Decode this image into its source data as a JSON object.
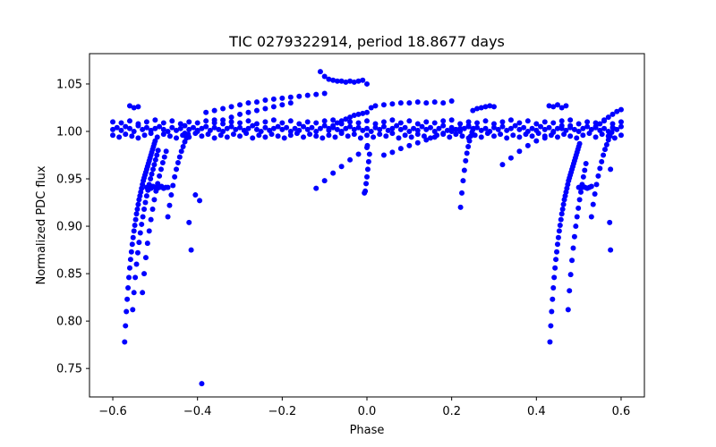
{
  "chart_data": {
    "type": "scatter",
    "title": "TIC 0279322914, period 18.8677 days",
    "xlabel": "Phase",
    "ylabel": "Normalized PDC flux",
    "xlim": [
      -0.655,
      0.655
    ],
    "ylim": [
      0.72,
      1.082
    ],
    "xticks": [
      -0.6,
      -0.4,
      -0.2,
      0.0,
      0.2,
      0.4,
      0.6
    ],
    "xtick_labels": [
      "−0.6",
      "−0.4",
      "−0.2",
      "0.0",
      "0.2",
      "0.4",
      "0.6"
    ],
    "yticks": [
      0.75,
      0.8,
      0.85,
      0.9,
      0.95,
      1.0,
      1.05
    ],
    "ytick_labels": [
      "0.75",
      "0.80",
      "0.85",
      "0.90",
      "0.95",
      "1.00",
      "1.05"
    ],
    "grid": false,
    "marker_color": "#0000ff",
    "series": [
      {
        "name": "flux",
        "x": [
          -0.6,
          -0.59,
          -0.58,
          -0.57,
          -0.56,
          -0.55,
          -0.54,
          -0.53,
          -0.52,
          -0.51,
          -0.5,
          -0.49,
          -0.48,
          -0.47,
          -0.46,
          -0.45,
          -0.44,
          -0.43,
          -0.42,
          -0.41,
          -0.4,
          -0.39,
          -0.38,
          -0.37,
          -0.36,
          -0.35,
          -0.34,
          -0.33,
          -0.32,
          -0.31,
          -0.3,
          -0.29,
          -0.28,
          -0.27,
          -0.26,
          -0.25,
          -0.24,
          -0.23,
          -0.22,
          -0.21,
          -0.2,
          -0.19,
          -0.18,
          -0.17,
          -0.16,
          -0.15,
          -0.14,
          -0.13,
          -0.12,
          -0.11,
          -0.1,
          -0.09,
          -0.08,
          -0.07,
          -0.06,
          -0.05,
          -0.04,
          -0.03,
          -0.02,
          -0.01,
          0.0,
          0.01,
          0.02,
          0.03,
          0.04,
          0.05,
          0.06,
          0.07,
          0.08,
          0.09,
          0.1,
          0.11,
          0.12,
          0.13,
          0.14,
          0.15,
          0.16,
          0.17,
          0.18,
          0.19,
          0.2,
          0.21,
          0.22,
          0.23,
          0.24,
          0.25,
          0.26,
          0.27,
          0.28,
          0.29,
          0.3,
          0.31,
          0.32,
          0.33,
          0.34,
          0.35,
          0.36,
          0.37,
          0.38,
          0.39,
          0.4,
          0.41,
          0.42,
          0.43,
          0.44,
          0.45,
          0.46,
          0.47,
          0.48,
          0.49,
          0.5,
          0.51,
          0.52,
          0.53,
          0.54,
          0.55,
          0.56,
          0.57,
          0.58,
          0.59,
          0.6,
          -0.6,
          -0.585,
          -0.57,
          -0.555,
          -0.54,
          -0.525,
          -0.51,
          -0.495,
          -0.48,
          -0.465,
          -0.45,
          -0.435,
          -0.42,
          -0.405,
          -0.39,
          -0.375,
          -0.36,
          -0.345,
          -0.33,
          -0.315,
          -0.3,
          -0.285,
          -0.27,
          -0.255,
          -0.24,
          -0.225,
          -0.21,
          -0.195,
          -0.18,
          -0.165,
          -0.15,
          -0.135,
          -0.12,
          -0.105,
          -0.09,
          -0.075,
          -0.06,
          -0.045,
          -0.03,
          -0.015,
          0.0,
          0.015,
          0.03,
          0.045,
          0.06,
          0.075,
          0.09,
          0.105,
          0.12,
          0.135,
          0.15,
          0.165,
          0.18,
          0.195,
          0.21,
          0.225,
          0.24,
          0.255,
          0.27,
          0.285,
          0.3,
          0.315,
          0.33,
          0.345,
          0.36,
          0.375,
          0.39,
          0.405,
          0.42,
          0.435,
          0.45,
          0.465,
          0.48,
          0.495,
          0.51,
          0.525,
          0.54,
          0.555,
          0.57,
          0.585,
          0.6,
          -0.6,
          -0.58,
          -0.56,
          -0.54,
          -0.52,
          -0.5,
          -0.48,
          -0.46,
          -0.44,
          -0.42,
          -0.4,
          -0.38,
          -0.36,
          -0.34,
          -0.32,
          -0.3,
          -0.28,
          -0.26,
          -0.24,
          -0.22,
          -0.2,
          -0.18,
          -0.16,
          -0.14,
          -0.12,
          -0.1,
          -0.08,
          -0.06,
          -0.04,
          -0.02,
          0.0,
          0.02,
          0.04,
          0.06,
          0.08,
          0.1,
          0.12,
          0.14,
          0.16,
          0.18,
          0.2,
          0.22,
          0.24,
          0.26,
          0.28,
          0.3,
          0.32,
          0.34,
          0.36,
          0.38,
          0.4,
          0.42,
          0.44,
          0.46,
          0.48,
          0.5,
          0.52,
          0.54,
          0.56,
          0.58,
          0.6,
          -0.572,
          -0.57,
          -0.568,
          -0.566,
          -0.564,
          -0.562,
          -0.56,
          -0.558,
          -0.556,
          -0.554,
          -0.552,
          -0.55,
          -0.548,
          -0.546,
          -0.544,
          -0.542,
          -0.54,
          -0.538,
          -0.536,
          -0.534,
          -0.532,
          -0.53,
          -0.528,
          -0.526,
          -0.524,
          -0.522,
          -0.52,
          -0.518,
          -0.516,
          -0.514,
          -0.512,
          -0.51,
          -0.508,
          -0.506,
          -0.504,
          -0.502,
          -0.5,
          -0.553,
          -0.55,
          -0.547,
          -0.544,
          -0.541,
          -0.538,
          -0.535,
          -0.532,
          -0.529,
          -0.526,
          -0.523,
          -0.52,
          -0.517,
          -0.514,
          -0.511,
          -0.508,
          -0.505,
          -0.502,
          -0.499,
          -0.496,
          -0.493,
          -0.53,
          -0.526,
          -0.522,
          -0.518,
          -0.514,
          -0.51,
          -0.506,
          -0.502,
          -0.498,
          -0.494,
          -0.49,
          -0.486,
          -0.482,
          -0.478,
          -0.474,
          -0.47,
          -0.466,
          -0.462,
          -0.458,
          -0.454,
          -0.45,
          -0.446,
          -0.442,
          -0.438,
          -0.434,
          -0.43,
          -0.426,
          -0.422,
          -0.52,
          -0.515,
          -0.51,
          -0.505,
          -0.5,
          -0.495,
          -0.49,
          -0.485,
          -0.48,
          -0.475,
          -0.47,
          -0.43,
          -0.4,
          -0.38,
          -0.36,
          -0.34,
          -0.32,
          -0.3,
          -0.28,
          -0.26,
          -0.24,
          -0.22,
          -0.2,
          -0.18,
          -0.38,
          -0.36,
          -0.34,
          -0.32,
          -0.3,
          -0.28,
          -0.26,
          -0.24,
          -0.22,
          -0.2,
          -0.18,
          -0.16,
          -0.14,
          -0.12,
          -0.1,
          -0.11,
          -0.1,
          -0.09,
          -0.08,
          -0.07,
          -0.06,
          -0.05,
          -0.04,
          -0.03,
          -0.02,
          -0.01,
          0.0,
          -0.12,
          -0.1,
          -0.08,
          -0.06,
          -0.04,
          -0.02,
          0.0,
          -0.09,
          -0.08,
          -0.07,
          -0.06,
          -0.05,
          -0.04,
          -0.03,
          -0.02,
          -0.01,
          0.0,
          -0.004,
          -0.002,
          0.0,
          0.002,
          0.004,
          0.006,
          -0.006,
          0.001,
          0.01,
          0.02,
          0.04,
          0.06,
          0.08,
          0.1,
          0.12,
          0.14,
          0.16,
          0.18,
          0.2,
          0.04,
          0.06,
          0.08,
          0.1,
          0.12,
          0.14,
          0.16,
          0.18,
          0.2,
          0.22,
          0.24,
          0.221,
          0.224,
          0.227,
          0.23,
          0.233,
          0.236,
          0.239,
          0.242,
          0.245,
          0.248,
          0.251,
          0.25,
          0.26,
          0.27,
          0.28,
          0.29,
          0.3,
          0.32,
          0.34,
          0.36,
          0.38,
          0.4,
          0.42,
          0.44,
          0.46,
          0.48,
          0.432,
          0.434,
          0.436,
          0.438,
          0.44,
          0.442,
          0.444,
          0.446,
          0.448,
          0.45,
          0.452,
          0.454,
          0.456,
          0.458,
          0.46,
          0.462,
          0.464,
          0.466,
          0.468,
          0.47,
          0.472,
          0.474,
          0.476,
          0.478,
          0.48,
          0.482,
          0.484,
          0.486,
          0.488,
          0.49,
          0.492,
          0.494,
          0.496,
          0.498,
          0.5,
          0.502,
          0.475,
          0.478,
          0.481,
          0.484,
          0.487,
          0.49,
          0.493,
          0.496,
          0.499,
          0.502,
          0.505,
          0.508,
          0.511,
          0.514,
          0.517,
          0.5,
          0.505,
          0.51,
          0.515,
          0.52,
          0.525,
          0.53,
          0.53,
          0.534,
          0.538,
          0.542,
          0.546,
          0.55,
          0.554,
          0.558,
          0.562,
          0.566,
          0.57,
          0.574,
          0.578,
          0.582,
          0.54,
          0.55,
          0.56,
          0.57,
          0.58,
          0.59,
          0.6,
          0.43,
          0.44,
          0.45,
          0.46,
          0.47,
          -0.56,
          -0.55,
          -0.54,
          -0.39,
          -0.415,
          -0.42,
          -0.395,
          -0.405,
          0.575,
          0.573,
          0.575
        ],
        "y": [
          1.002,
          1.004,
          1.001,
          1.005,
          1.003,
          1.0,
          1.006,
          1.002,
          1.004,
          1.001,
          1.003,
          1.005,
          1.002,
          1.0,
          1.004,
          1.001,
          1.003,
          1.006,
          1.002,
          1.004,
          1.0,
          1.003,
          1.005,
          1.001,
          1.004,
          1.002,
          1.0,
          1.003,
          1.005,
          1.002,
          1.004,
          1.001,
          1.003,
          1.006,
          1.002,
          1.0,
          1.004,
          1.001,
          1.003,
          1.005,
          1.002,
          1.004,
          1.0,
          1.003,
          1.001,
          1.005,
          1.002,
          1.004,
          1.0,
          1.003,
          1.006,
          1.001,
          1.004,
          1.002,
          1.0,
          1.003,
          1.005,
          1.002,
          1.004,
          1.001,
          1.003,
          1.0,
          1.004,
          1.002,
          1.005,
          1.001,
          1.003,
          1.006,
          1.002,
          1.004,
          1.0,
          1.003,
          1.001,
          1.005,
          1.002,
          1.004,
          1.0,
          1.003,
          1.006,
          1.001,
          1.004,
          1.002,
          1.0,
          1.003,
          1.005,
          1.002,
          1.004,
          1.001,
          1.003,
          1.0,
          1.004,
          1.002,
          1.005,
          1.001,
          1.003,
          1.006,
          1.002,
          1.004,
          1.0,
          1.003,
          1.001,
          1.005,
          1.002,
          1.004,
          1.0,
          1.003,
          1.006,
          1.001,
          1.004,
          1.002,
          1.0,
          1.003,
          1.005,
          1.002,
          1.004,
          1.001,
          1.003,
          1.0,
          1.004,
          1.002,
          1.005,
          0.996,
          0.994,
          0.997,
          0.995,
          0.993,
          0.996,
          0.998,
          0.994,
          0.997,
          0.995,
          0.993,
          0.996,
          0.994,
          0.998,
          0.995,
          0.997,
          0.993,
          0.996,
          0.994,
          0.997,
          0.995,
          0.998,
          0.993,
          0.996,
          0.994,
          0.997,
          0.995,
          0.993,
          0.996,
          0.998,
          0.994,
          0.997,
          0.995,
          0.993,
          0.996,
          0.994,
          0.998,
          0.995,
          0.997,
          0.993,
          0.996,
          0.994,
          0.997,
          0.995,
          0.998,
          0.993,
          0.996,
          0.994,
          0.997,
          0.995,
          0.993,
          0.996,
          0.998,
          0.994,
          0.997,
          0.995,
          0.993,
          0.996,
          0.994,
          0.998,
          0.995,
          0.997,
          0.993,
          0.996,
          0.994,
          0.997,
          0.995,
          0.998,
          0.993,
          0.996,
          0.994,
          0.997,
          0.995,
          0.993,
          0.996,
          0.998,
          0.994,
          0.997,
          0.995,
          0.993,
          0.996,
          1.01,
          1.009,
          1.011,
          1.008,
          1.01,
          1.012,
          1.009,
          1.011,
          1.008,
          1.01,
          1.009,
          1.011,
          1.012,
          1.008,
          1.01,
          1.009,
          1.011,
          1.008,
          1.01,
          1.012,
          1.009,
          1.011,
          1.008,
          1.01,
          1.009,
          1.011,
          1.012,
          1.008,
          1.01,
          1.009,
          1.011,
          1.008,
          1.01,
          1.012,
          1.009,
          1.011,
          1.008,
          1.01,
          1.009,
          1.011,
          1.012,
          1.008,
          1.01,
          1.009,
          1.011,
          1.008,
          1.01,
          1.012,
          1.009,
          1.011,
          1.008,
          1.01,
          1.009,
          1.011,
          1.012,
          1.008,
          1.01,
          1.009,
          1.011,
          1.008,
          1.01,
          0.778,
          0.795,
          0.81,
          0.823,
          0.835,
          0.846,
          0.856,
          0.865,
          0.873,
          0.881,
          0.888,
          0.895,
          0.901,
          0.907,
          0.913,
          0.918,
          0.923,
          0.928,
          0.932,
          0.936,
          0.94,
          0.944,
          0.948,
          0.951,
          0.954,
          0.957,
          0.96,
          0.963,
          0.966,
          0.969,
          0.972,
          0.975,
          0.978,
          0.981,
          0.984,
          0.987,
          0.99,
          0.812,
          0.83,
          0.846,
          0.86,
          0.872,
          0.883,
          0.893,
          0.902,
          0.91,
          0.918,
          0.925,
          0.932,
          0.938,
          0.944,
          0.95,
          0.955,
          0.96,
          0.965,
          0.97,
          0.975,
          0.98,
          0.83,
          0.85,
          0.867,
          0.882,
          0.895,
          0.907,
          0.918,
          0.928,
          0.937,
          0.945,
          0.953,
          0.96,
          0.967,
          0.973,
          0.979,
          0.91,
          0.922,
          0.933,
          0.943,
          0.952,
          0.96,
          0.967,
          0.973,
          0.979,
          0.984,
          0.989,
          0.993,
          0.997,
          0.941,
          0.941,
          0.94,
          0.942,
          0.941,
          0.94,
          0.941,
          0.942,
          0.94,
          0.941,
          0.941,
          0.998,
          1.001,
          1.005,
          1.009,
          1.012,
          1.015,
          1.018,
          1.02,
          1.022,
          1.024,
          1.026,
          1.028,
          1.03,
          1.02,
          1.022,
          1.024,
          1.026,
          1.028,
          1.03,
          1.031,
          1.033,
          1.034,
          1.035,
          1.036,
          1.037,
          1.038,
          1.039,
          1.04,
          1.063,
          1.058,
          1.055,
          1.054,
          1.053,
          1.053,
          1.052,
          1.053,
          1.052,
          1.053,
          1.054,
          1.05,
          0.94,
          0.948,
          0.956,
          0.963,
          0.97,
          0.976,
          0.983,
          1.003,
          1.006,
          1.009,
          1.011,
          1.013,
          1.015,
          1.017,
          1.018,
          1.019,
          1.02,
          0.937,
          0.945,
          0.952,
          0.96,
          0.968,
          0.976,
          0.935,
          0.985,
          1.025,
          1.027,
          1.028,
          1.029,
          1.03,
          1.03,
          1.031,
          1.03,
          1.031,
          1.03,
          1.032,
          0.975,
          0.978,
          0.982,
          0.985,
          0.988,
          0.991,
          0.994,
          0.997,
          1.0,
          1.003,
          1.006,
          0.92,
          0.935,
          0.948,
          0.959,
          0.969,
          0.977,
          0.984,
          0.99,
          0.995,
          0.999,
          1.003,
          1.022,
          1.024,
          1.025,
          1.026,
          1.027,
          1.026,
          0.965,
          0.972,
          0.979,
          0.985,
          0.99,
          0.995,
          0.999,
          1.003,
          1.006,
          0.778,
          0.795,
          0.81,
          0.823,
          0.835,
          0.846,
          0.856,
          0.865,
          0.873,
          0.881,
          0.888,
          0.895,
          0.901,
          0.907,
          0.913,
          0.918,
          0.923,
          0.928,
          0.932,
          0.936,
          0.94,
          0.944,
          0.948,
          0.951,
          0.954,
          0.957,
          0.96,
          0.963,
          0.966,
          0.969,
          0.972,
          0.975,
          0.978,
          0.981,
          0.984,
          0.987,
          0.812,
          0.832,
          0.849,
          0.864,
          0.877,
          0.889,
          0.9,
          0.91,
          0.919,
          0.928,
          0.936,
          0.944,
          0.952,
          0.959,
          0.966,
          0.941,
          0.94,
          0.942,
          0.941,
          0.94,
          0.941,
          0.942,
          0.91,
          0.923,
          0.934,
          0.944,
          0.953,
          0.961,
          0.968,
          0.975,
          0.981,
          0.986,
          0.991,
          0.995,
          0.999,
          1.003,
          1.005,
          1.008,
          1.012,
          1.015,
          1.018,
          1.021,
          1.023,
          1.027,
          1.026,
          1.028,
          1.025,
          1.027,
          1.027,
          1.025,
          1.026,
          0.734,
          0.875,
          0.904,
          0.927,
          0.933,
          0.875,
          0.904,
          0.96
        ]
      }
    ]
  }
}
